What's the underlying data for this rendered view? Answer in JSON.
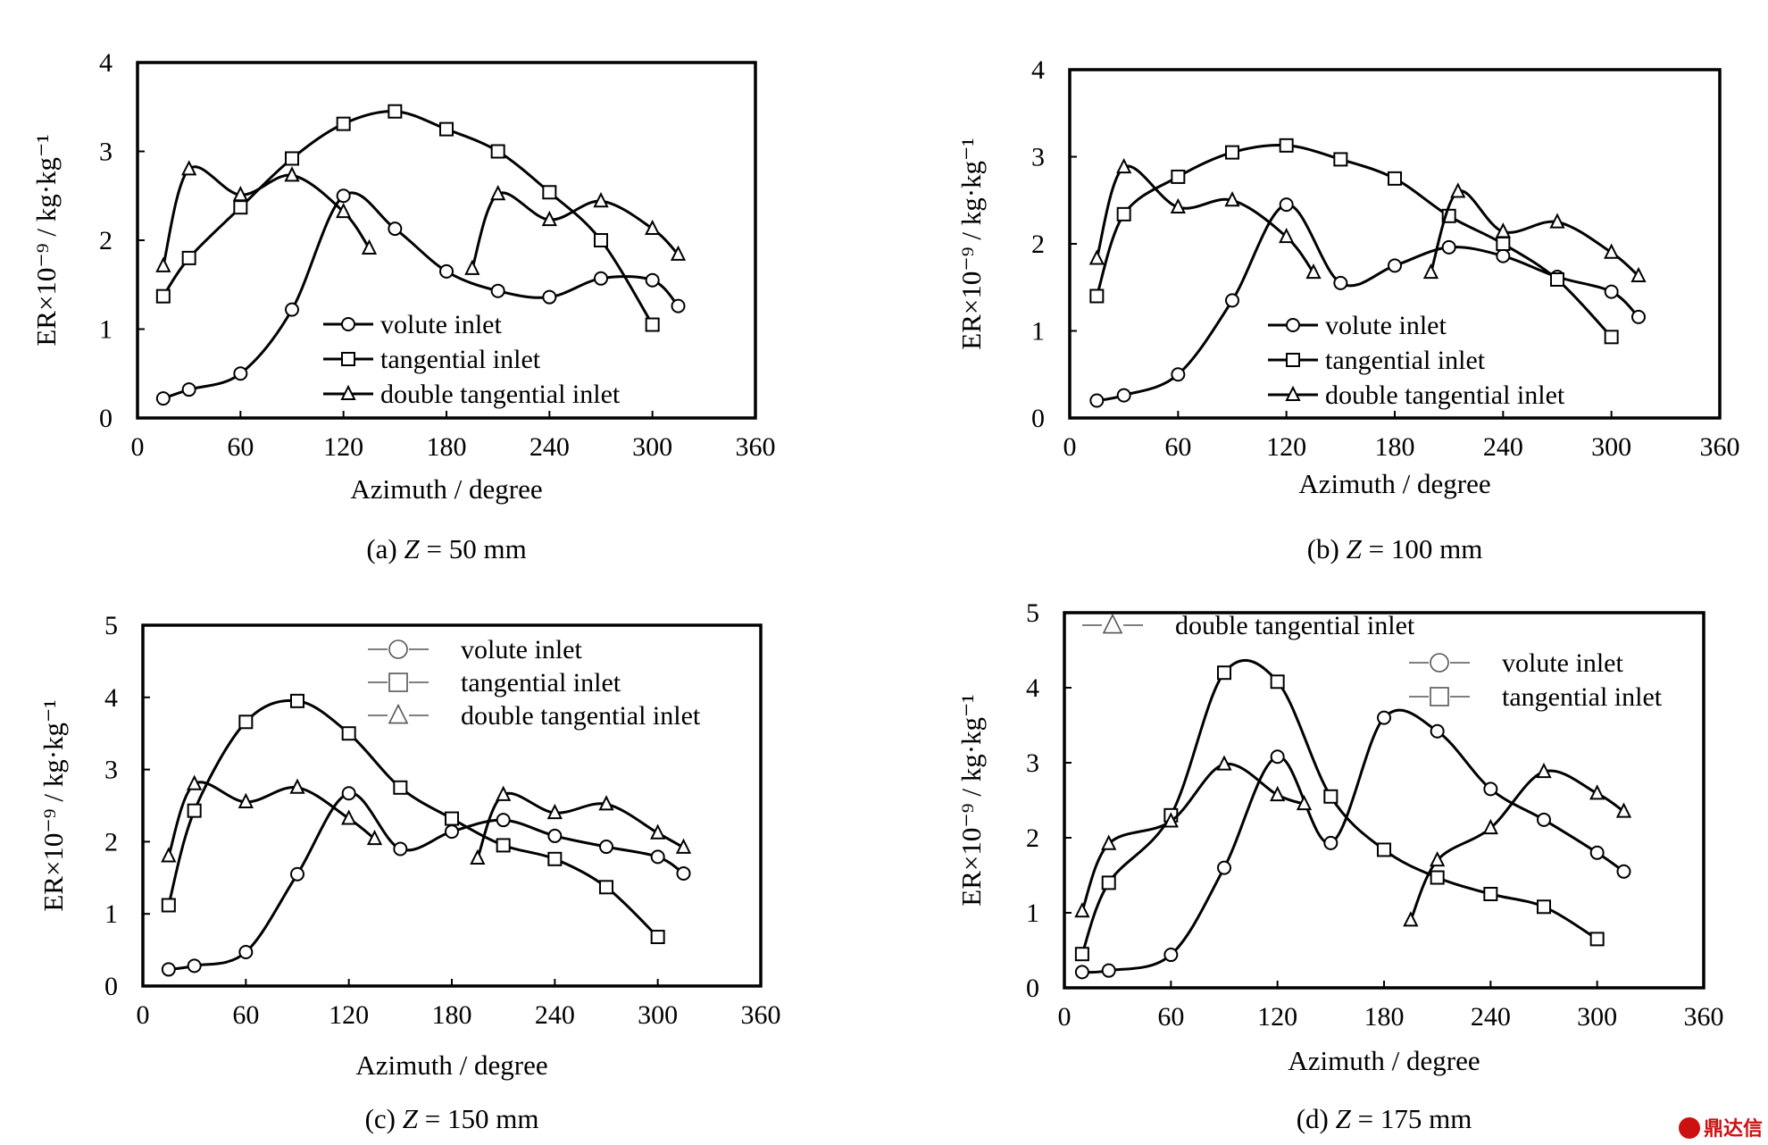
{
  "chart_data": [
    {
      "type": "line",
      "caption_prefix": "(a) ",
      "caption_var": "Z",
      "caption_rest": " = 50 mm",
      "xlabel": "Azimuth / degree",
      "ylabel": "ER×10⁻⁹ / kg·kg⁻¹",
      "xlim": [
        0,
        360
      ],
      "ylim": [
        0,
        4
      ],
      "xticks": [
        "0",
        "60",
        "120",
        "180",
        "240",
        "300",
        "360"
      ],
      "yticks": [
        "0",
        "1",
        "2",
        "3",
        "4"
      ],
      "legend_placement": "lower-left inside",
      "series": [
        {
          "name": "volute inlet",
          "marker": "circle",
          "legend_order": 1,
          "x": [
            15,
            30,
            60,
            90,
            120,
            150,
            180,
            210,
            240,
            270,
            300,
            315
          ],
          "y": [
            0.22,
            0.32,
            0.5,
            1.22,
            2.5,
            2.13,
            1.65,
            1.43,
            1.36,
            1.57,
            1.55,
            1.26
          ]
        },
        {
          "name": "tangential inlet",
          "marker": "square",
          "legend_order": 2,
          "x": [
            15,
            30,
            60,
            90,
            120,
            150,
            180,
            210,
            240,
            270,
            300
          ],
          "y": [
            1.37,
            1.8,
            2.37,
            2.92,
            3.31,
            3.45,
            3.25,
            3.0,
            2.54,
            2.0,
            1.05
          ]
        },
        {
          "name": "double tangential inlet",
          "marker": "triangle",
          "legend_order": 3,
          "segments": [
            {
              "x": [
                15,
                30,
                60,
                90,
                120,
                135
              ],
              "y": [
                1.71,
                2.8,
                2.51,
                2.73,
                2.32,
                1.91
              ]
            },
            {
              "x": [
                195,
                210,
                240,
                270,
                300,
                315
              ],
              "y": [
                1.68,
                2.52,
                2.23,
                2.44,
                2.13,
                1.84
              ]
            }
          ]
        }
      ]
    },
    {
      "type": "line",
      "caption_prefix": "(b) ",
      "caption_var": "Z",
      "caption_rest": " = 100 mm",
      "xlabel": "Azimuth / degree",
      "ylabel": "ER×10⁻⁹ / kg·kg⁻¹",
      "xlim": [
        0,
        360
      ],
      "ylim": [
        0,
        4
      ],
      "xticks": [
        "0",
        "60",
        "120",
        "180",
        "240",
        "300",
        "360"
      ],
      "yticks": [
        "0",
        "1",
        "2",
        "3",
        "4"
      ],
      "legend_placement": "lower-left inside",
      "series": [
        {
          "name": "volute inlet",
          "marker": "circle",
          "legend_order": 1,
          "x": [
            15,
            30,
            60,
            90,
            120,
            150,
            180,
            210,
            240,
            270,
            300,
            315
          ],
          "y": [
            0.2,
            0.26,
            0.5,
            1.35,
            2.45,
            1.55,
            1.75,
            1.96,
            1.86,
            1.62,
            1.45,
            1.16
          ]
        },
        {
          "name": "tangential inlet",
          "marker": "square",
          "legend_order": 2,
          "x": [
            15,
            30,
            60,
            90,
            120,
            150,
            180,
            210,
            240,
            270,
            300
          ],
          "y": [
            1.4,
            2.34,
            2.77,
            3.05,
            3.13,
            2.97,
            2.75,
            2.32,
            2.0,
            1.59,
            0.93
          ]
        },
        {
          "name": "double tangential inlet",
          "marker": "triangle",
          "legend_order": 3,
          "segments": [
            {
              "x": [
                15,
                30,
                60,
                90,
                120,
                135
              ],
              "y": [
                1.83,
                2.88,
                2.42,
                2.5,
                2.08,
                1.67
              ]
            },
            {
              "x": [
                200,
                215,
                240,
                270,
                300,
                315
              ],
              "y": [
                1.67,
                2.6,
                2.14,
                2.25,
                1.9,
                1.63
              ]
            }
          ]
        }
      ]
    },
    {
      "type": "line",
      "caption_prefix": "(c) ",
      "caption_var": "Z",
      "caption_rest": " = 150 mm",
      "xlabel": "Azimuth / degree",
      "ylabel": "ER×10⁻⁹ / kg·kg⁻¹",
      "xlim": [
        0,
        360
      ],
      "ylim": [
        0,
        5
      ],
      "xticks": [
        "0",
        "60",
        "120",
        "180",
        "240",
        "300",
        "360"
      ],
      "yticks": [
        "0",
        "1",
        "2",
        "3",
        "4",
        "5"
      ],
      "legend_placement": "top-right inside",
      "series": [
        {
          "name": "volute inlet",
          "marker": "circle",
          "legend_order": 1,
          "x": [
            15,
            30,
            60,
            90,
            120,
            150,
            180,
            210,
            240,
            270,
            300,
            315
          ],
          "y": [
            0.23,
            0.28,
            0.47,
            1.55,
            2.67,
            1.9,
            2.14,
            2.3,
            2.08,
            1.93,
            1.79,
            1.56
          ]
        },
        {
          "name": "tangential inlet",
          "marker": "square",
          "legend_order": 2,
          "x": [
            15,
            30,
            60,
            90,
            120,
            150,
            180,
            210,
            240,
            270,
            300
          ],
          "y": [
            1.12,
            2.43,
            3.66,
            3.95,
            3.5,
            2.75,
            2.32,
            1.95,
            1.76,
            1.37,
            0.68
          ]
        },
        {
          "name": "double tangential inlet",
          "marker": "triangle",
          "legend_order": 3,
          "segments": [
            {
              "x": [
                15,
                30,
                60,
                90,
                120,
                135
              ],
              "y": [
                1.8,
                2.8,
                2.55,
                2.75,
                2.32,
                2.04
              ]
            },
            {
              "x": [
                195,
                210,
                240,
                270,
                300,
                315
              ],
              "y": [
                1.77,
                2.65,
                2.4,
                2.52,
                2.12,
                1.92
              ]
            }
          ]
        }
      ]
    },
    {
      "type": "line",
      "caption_prefix": "(d) ",
      "caption_var": "Z",
      "caption_rest": " = 175 mm",
      "xlabel": "Azimuth / degree",
      "ylabel": "ER×10⁻⁹ / kg·kg⁻¹",
      "xlim": [
        0,
        360
      ],
      "ylim": [
        0,
        5
      ],
      "xticks": [
        "0",
        "60",
        "120",
        "180",
        "240",
        "300",
        "360"
      ],
      "yticks": [
        "0",
        "1",
        "2",
        "3",
        "4",
        "5"
      ],
      "legend_placement": "top-left and top-right inside",
      "series": [
        {
          "name": "volute inlet",
          "marker": "circle",
          "legend_order": 2,
          "x": [
            10,
            25,
            60,
            90,
            120,
            150,
            180,
            210,
            240,
            270,
            300,
            315
          ],
          "y": [
            0.21,
            0.23,
            0.44,
            1.6,
            3.08,
            1.93,
            3.6,
            3.42,
            2.65,
            2.24,
            1.8,
            1.55
          ]
        },
        {
          "name": "tangential inlet",
          "marker": "square",
          "legend_order": 3,
          "x": [
            10,
            25,
            60,
            90,
            120,
            150,
            180,
            210,
            240,
            270,
            300
          ],
          "y": [
            0.45,
            1.4,
            2.3,
            4.2,
            4.08,
            2.55,
            1.84,
            1.47,
            1.25,
            1.08,
            0.65
          ]
        },
        {
          "name": "double tangential inlet",
          "marker": "triangle",
          "legend_order": 1,
          "segments": [
            {
              "x": [
                10,
                25,
                60,
                90,
                120,
                135
              ],
              "y": [
                1.02,
                1.92,
                2.22,
                2.98,
                2.57,
                2.45
              ]
            },
            {
              "x": [
                195,
                210,
                240,
                270,
                300,
                315
              ],
              "y": [
                0.9,
                1.7,
                2.13,
                2.88,
                2.59,
                2.35
              ]
            }
          ]
        }
      ]
    }
  ],
  "watermark": {
    "text": "鼎达信",
    "color": "#cc1111",
    "icon": "logo-badge-icon"
  }
}
